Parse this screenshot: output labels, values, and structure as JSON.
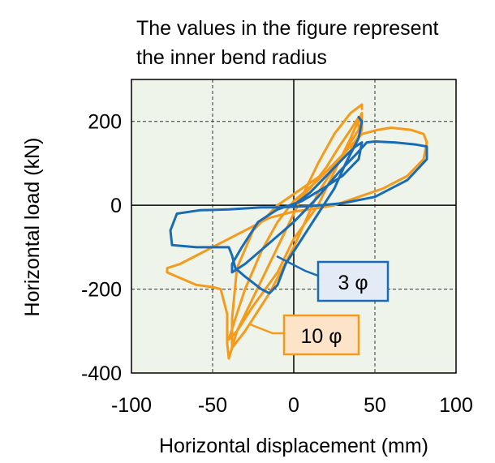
{
  "chart_data": {
    "type": "line",
    "title_lines": [
      "The values in the figure represent",
      "the inner bend radius"
    ],
    "xlabel": "Horizontal displacement (mm)",
    "ylabel": "Horizontal load (kN)",
    "xlim": [
      -100,
      100
    ],
    "ylim": [
      -400,
      300
    ],
    "xticks": [
      "-100",
      "-50",
      "0",
      "50",
      "100"
    ],
    "yticks": [
      "-400",
      "-200",
      "0",
      "200"
    ],
    "xtick_values": [
      -100,
      -50,
      0,
      50,
      100
    ],
    "ytick_values": [
      -400,
      -200,
      0,
      200
    ],
    "grid": "dashed at ±50 mm and ±200 kN, solid zero lines",
    "background_color": "#eef4ea",
    "series": [
      {
        "name": "10 φ",
        "color": "#f59a1b",
        "callout_bg": "#fde3c8",
        "x": [
          0,
          10,
          20,
          28,
          35,
          40,
          40,
          30,
          15,
          0,
          -10,
          -20,
          -30,
          -36,
          -40,
          -35,
          -25,
          -10,
          0,
          15,
          25,
          35,
          42,
          42,
          35,
          20,
          5,
          -10,
          -25,
          -35,
          -38,
          -38,
          -30,
          -15,
          0,
          15,
          30,
          42,
          52,
          60,
          72,
          80,
          82,
          80,
          70,
          55,
          40,
          25,
          10,
          0,
          -15,
          -35,
          -55,
          -70,
          -78,
          -78,
          -72,
          -60,
          -50,
          -45,
          -43,
          -41,
          -41,
          -40,
          -35,
          -25,
          -15,
          -5,
          5,
          15,
          25,
          35,
          42,
          42
        ],
        "y": [
          0,
          40,
          90,
          140,
          180,
          210,
          180,
          120,
          60,
          10,
          -40,
          -110,
          -200,
          -270,
          -320,
          -300,
          -240,
          -160,
          -80,
          0,
          80,
          160,
          220,
          180,
          130,
          80,
          40,
          0,
          -60,
          -150,
          -270,
          -340,
          -300,
          -210,
          -100,
          30,
          120,
          170,
          180,
          185,
          180,
          170,
          150,
          110,
          70,
          40,
          20,
          0,
          -10,
          -15,
          -30,
          -70,
          -110,
          -140,
          -150,
          -160,
          -170,
          -190,
          -195,
          -200,
          -230,
          -260,
          -330,
          -365,
          -300,
          -220,
          -140,
          -60,
          20,
          100,
          170,
          220,
          240,
          230
        ]
      },
      {
        "name": "3 φ",
        "color": "#1a6bb5",
        "callout_bg": "#e3ebf6",
        "x": [
          0,
          10,
          20,
          30,
          38,
          42,
          40,
          30,
          18,
          5,
          -10,
          -22,
          -32,
          -38,
          -38,
          -30,
          -15,
          0,
          15,
          28,
          38,
          45,
          50,
          62,
          75,
          82,
          82,
          70,
          50,
          30,
          10,
          -10,
          -20,
          -40,
          -58,
          -72,
          -76,
          -75,
          -60,
          -40,
          -38,
          -36,
          -30,
          -20,
          -15,
          -10,
          -5,
          5,
          15,
          25,
          32,
          40,
          42,
          40
        ],
        "y": [
          0,
          30,
          70,
          110,
          140,
          150,
          110,
          70,
          40,
          10,
          -10,
          -40,
          -100,
          -140,
          -160,
          -140,
          -90,
          -40,
          20,
          80,
          120,
          150,
          152,
          150,
          145,
          140,
          110,
          60,
          20,
          5,
          -2,
          -5,
          -5,
          -10,
          -12,
          -20,
          -60,
          -95,
          -100,
          -100,
          -120,
          -150,
          -170,
          -200,
          -210,
          -190,
          -140,
          -80,
          -20,
          40,
          100,
          160,
          200,
          210
        ]
      }
    ]
  }
}
